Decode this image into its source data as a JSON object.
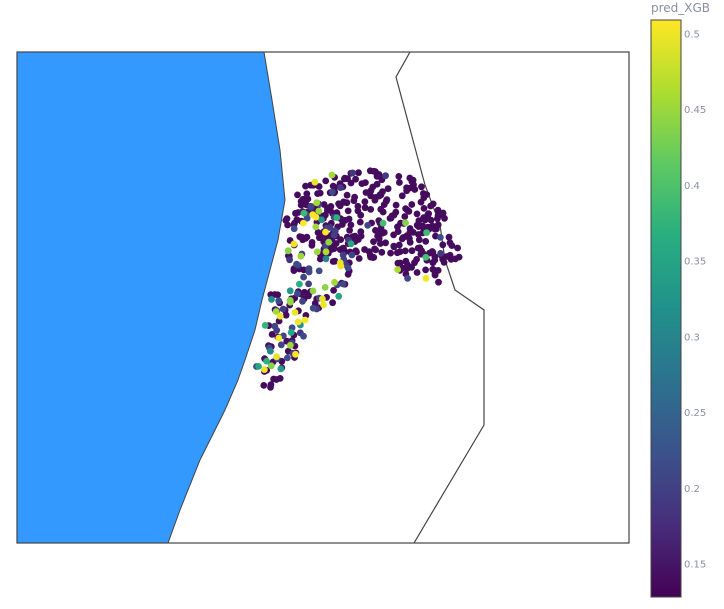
{
  "colorbar": {
    "title": "pred_XGB",
    "ticks": [
      "0.5",
      "0.45",
      "0.4",
      "0.35",
      "0.3",
      "0.25",
      "0.2",
      "0.15"
    ],
    "tick_values": [
      0.5,
      0.45,
      0.4,
      0.35,
      0.3,
      0.25,
      0.2,
      0.15
    ],
    "min": 0.128,
    "max": 0.515
  },
  "colors": {
    "ocean": "#3399ff",
    "land": "#ffffff",
    "boundary": "#444444",
    "viridis": [
      "#440154",
      "#472d7b",
      "#3b528b",
      "#2c728e",
      "#21918c",
      "#28ae80",
      "#5ec962",
      "#addc30",
      "#fde725"
    ]
  },
  "map": {
    "style": "scatter-geo",
    "points": {
      "count": 520,
      "seed": 7,
      "dominant_value": 0.14
    }
  }
}
